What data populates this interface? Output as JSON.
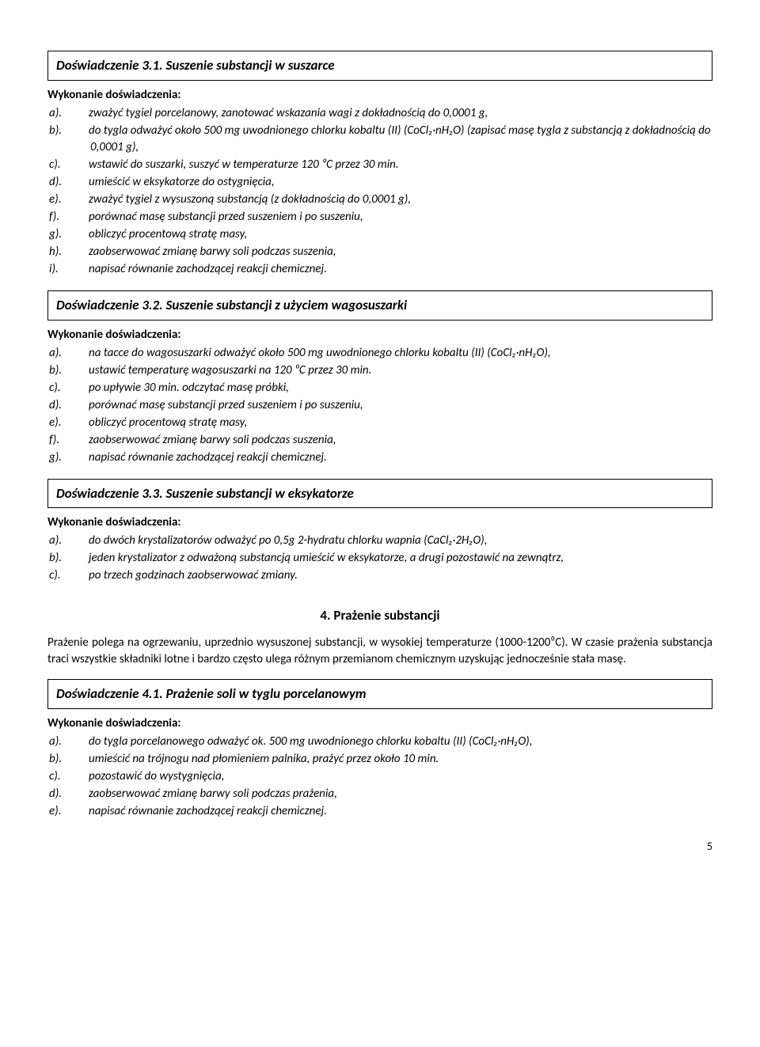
{
  "exp31": {
    "title": "Doświadczenie 3.1. Suszenie substancji w suszarce",
    "sub": "Wykonanie doświadczenia:",
    "items": [
      {
        "lbl": "a).",
        "txt": "zważyć tygiel porcelanowy, zanotować wskazania wagi z dokładnością do 0,0001 g,"
      },
      {
        "lbl": "b).",
        "txt": "do tygla odważyć około 500 mg uwodnionego chlorku kobaltu (II) (CoCl₂·nH₂O) (zapisać masę tygla z substancją z dokładnością do 0,0001 g),"
      },
      {
        "lbl": "c).",
        "txt": "wstawić do suszarki, suszyć w temperaturze 120 ⁰C przez 30 min."
      },
      {
        "lbl": "d).",
        "txt": "umieścić w eksykatorze do ostygnięcia,"
      },
      {
        "lbl": "e).",
        "txt": "zważyć tygiel z wysuszoną substancją (z dokładnością do 0,0001 g),"
      },
      {
        "lbl": "f).",
        "txt": "porównać masę substancji przed suszeniem i po suszeniu,"
      },
      {
        "lbl": "g).",
        "txt": "obliczyć procentową stratę masy,"
      },
      {
        "lbl": "h).",
        "txt": "zaobserwować zmianę barwy soli podczas suszenia,"
      },
      {
        "lbl": "i).",
        "txt": "napisać równanie zachodzącej reakcji chemicznej."
      }
    ]
  },
  "exp32": {
    "title": "Doświadczenie 3.2. Suszenie substancji z użyciem wagosuszarki",
    "sub": "Wykonanie doświadczenia:",
    "items": [
      {
        "lbl": "a).",
        "txt": "na tacce do wagosuszarki odważyć około 500 mg uwodnionego chlorku kobaltu (II) (CoCl₂·nH₂O),"
      },
      {
        "lbl": "b).",
        "txt": "ustawić temperaturę wagosuszarki na 120 ⁰C przez 30 min."
      },
      {
        "lbl": "c).",
        "txt": "po upływie 30 min. odczytać masę próbki,"
      },
      {
        "lbl": "d).",
        "txt": "porównać masę substancji przed suszeniem i po suszeniu,"
      },
      {
        "lbl": "e).",
        "txt": "obliczyć procentową stratę masy,"
      },
      {
        "lbl": "f).",
        "txt": "zaobserwować zmianę barwy soli podczas suszenia,"
      },
      {
        "lbl": "g).",
        "txt": "napisać równanie zachodzącej reakcji chemicznej."
      }
    ]
  },
  "exp33": {
    "title": "Doświadczenie 3.3. Suszenie substancji w eksykatorze",
    "sub": "Wykonanie doświadczenia:",
    "items": [
      {
        "lbl": "a).",
        "txt": "do dwóch krystalizatorów odważyć po 0,5g 2-hydratu chlorku wapnia (CaCl₂·2H₂O),"
      },
      {
        "lbl": "b).",
        "txt": "jeden krystalizator z odważoną substancją umieścić w eksykatorze, a drugi pozostawić na zewnątrz,"
      },
      {
        "lbl": "c).",
        "txt": "po trzech godzinach zaobserwować zmiany."
      }
    ]
  },
  "section4": {
    "heading": "4. Prażenie substancji",
    "para": "Prażenie polega na ogrzewaniu, uprzednio wysuszonej substancji, w wysokiej temperaturze (1000-1200⁰C). W czasie prażenia substancja traci wszystkie składniki lotne i bardzo często ulega różnym przemianom chemicznym uzyskując jednocześnie stała masę."
  },
  "exp41": {
    "title": "Doświadczenie 4.1. Prażenie soli w tyglu porcelanowym",
    "sub": "Wykonanie doświadczenia:",
    "items": [
      {
        "lbl": "a).",
        "txt": "do tygla porcelanowego odważyć ok. 500 mg uwodnionego chlorku kobaltu (II) (CoCl₂·nH₂O),"
      },
      {
        "lbl": "b).",
        "txt": "umieścić na trójnogu nad płomieniem palnika, prażyć przez około 10 min."
      },
      {
        "lbl": "c).",
        "txt": "pozostawić do wystygnięcia,"
      },
      {
        "lbl": "d).",
        "txt": "zaobserwować zmianę barwy soli podczas prażenia,"
      },
      {
        "lbl": "e).",
        "txt": "napisać równanie zachodzącej reakcji chemicznej."
      }
    ]
  },
  "pagenum": "5"
}
